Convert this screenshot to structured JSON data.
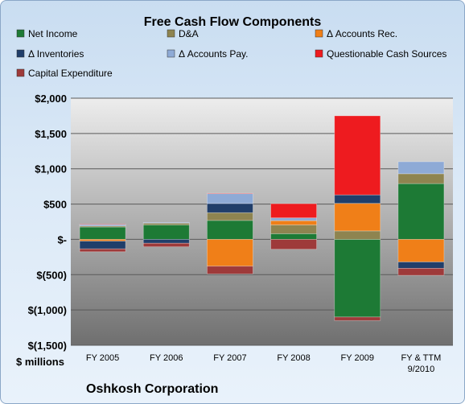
{
  "chart_data": {
    "type": "bar",
    "stacked": true,
    "title": "Free Cash Flow Components",
    "ylabel": "$ millions",
    "footer": "Oshkosh Corporation",
    "categories": [
      "FY 2005",
      "FY 2006",
      "FY 2007",
      "FY 2008",
      "FY 2009",
      "FY & TTM 9/2010"
    ],
    "ylim": [
      -1500,
      2000
    ],
    "yticks": [
      2000,
      1500,
      1000,
      500,
      0,
      -500,
      -1000,
      -1500
    ],
    "ytick_labels": [
      "$2,000",
      "$1,500",
      "$1,000",
      "$500",
      "$-",
      "$(500)",
      "$(1,000)",
      "$(1,500)"
    ],
    "grid": true,
    "legend_position": "top",
    "series": [
      {
        "name": "Net Income",
        "color": "#1d7a35",
        "values": [
          175,
          205,
          268,
          80,
          -1100,
          790
        ]
      },
      {
        "name": "D&A",
        "color": "#8e8450",
        "values": [
          15,
          25,
          110,
          125,
          120,
          140
        ]
      },
      {
        "name": "Δ Accounts Rec.",
        "color": "#f07f18",
        "values": [
          -25,
          0,
          -380,
          60,
          390,
          -320
        ]
      },
      {
        "name": "Δ Inventories",
        "color": "#203e6a",
        "values": [
          -110,
          -55,
          130,
          0,
          120,
          -90
        ]
      },
      {
        "name": "Δ Accounts Pay.",
        "color": "#8eaad6",
        "values": [
          20,
          10,
          140,
          40,
          0,
          170
        ]
      },
      {
        "name": "Questionable Cash Sources",
        "color": "#ee1b1f",
        "values": [
          5,
          0,
          5,
          200,
          1120,
          0
        ]
      },
      {
        "name": "Capital Expenditure",
        "color": "#9e3a3a",
        "values": [
          -40,
          -50,
          -110,
          -140,
          -50,
          -100
        ]
      }
    ]
  }
}
